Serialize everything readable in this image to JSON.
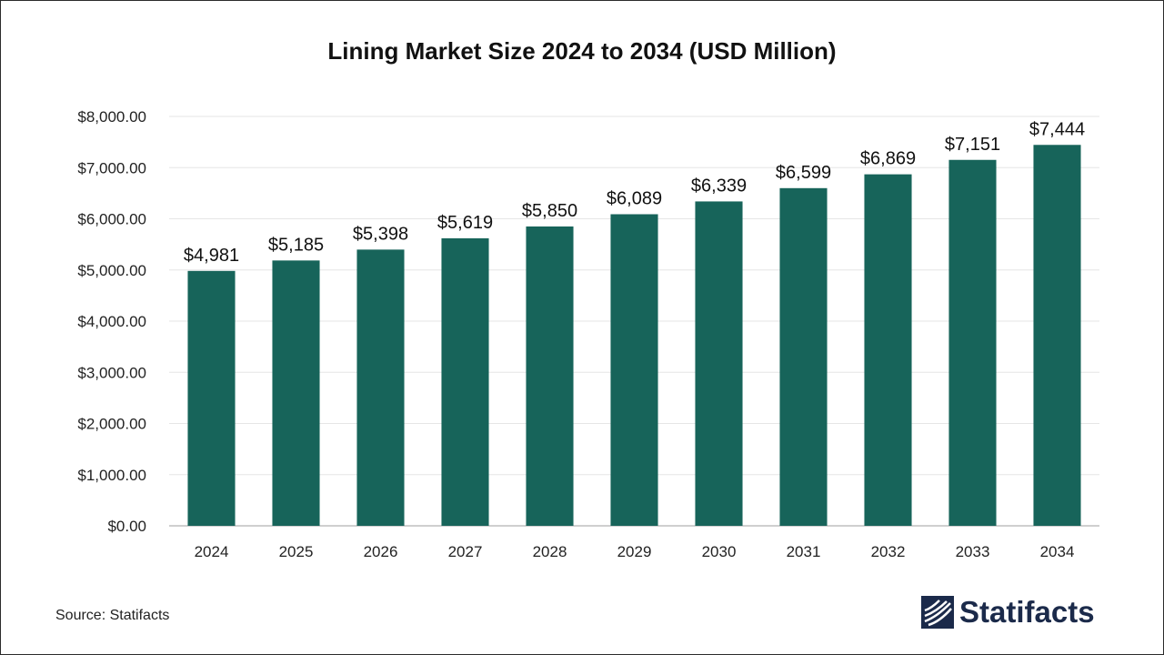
{
  "colors": {
    "bar": "#17645a",
    "grid": "#e6e6e6",
    "axis": "#bfbfbf",
    "text": "#222222",
    "brand": "#1b2a4a"
  },
  "footer": {
    "source": "Source: Statifacts",
    "logo_text": "Statifacts",
    "logo_icon": "statifacts-logo-icon"
  },
  "chart_data": {
    "type": "bar",
    "title": "Lining Market Size 2024 to 2034 (USD Million)",
    "xlabel": "",
    "ylabel": "",
    "categories": [
      "2024",
      "2025",
      "2026",
      "2027",
      "2028",
      "2029",
      "2030",
      "2031",
      "2032",
      "2033",
      "2034"
    ],
    "values": [
      4981,
      5185,
      5398,
      5619,
      5850,
      6089,
      6339,
      6599,
      6869,
      7151,
      7444
    ],
    "data_labels": [
      "$4,981",
      "$5,185",
      "$5,398",
      "$5,619",
      "$5,850",
      "$6,089",
      "$6,339",
      "$6,599",
      "$6,869",
      "$7,151",
      "$7,444"
    ],
    "ylim": [
      0,
      8000
    ],
    "yticks": [
      0,
      1000,
      2000,
      3000,
      4000,
      5000,
      6000,
      7000,
      8000
    ],
    "ytick_labels": [
      "$0.00",
      "$1,000.00",
      "$2,000.00",
      "$3,000.00",
      "$4,000.00",
      "$5,000.00",
      "$6,000.00",
      "$7,000.00",
      "$8,000.00"
    ],
    "grid": true,
    "legend": "none"
  }
}
